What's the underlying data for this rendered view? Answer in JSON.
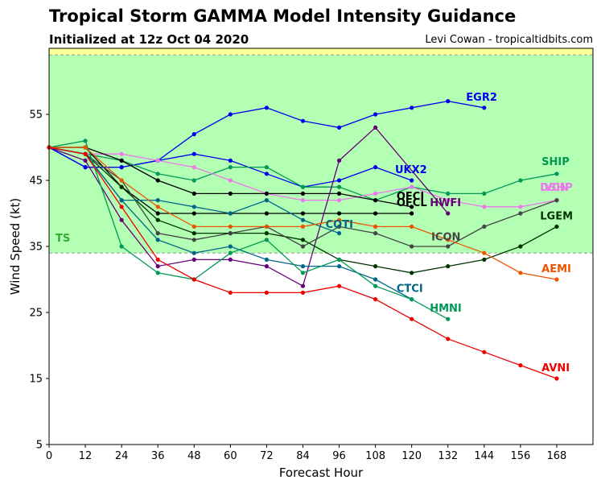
{
  "header": {
    "title": "Tropical Storm GAMMA Model Intensity Guidance",
    "subtitle": "Initialized at 12z Oct 04 2020",
    "credit": "Levi Cowan - tropicaltidbits.com"
  },
  "chart_data": {
    "type": "line",
    "title": "Tropical Storm GAMMA Model Intensity Guidance",
    "subtitle": "Initialized at 12z Oct 04 2020",
    "xlabel": "Forecast Hour",
    "ylabel": "Wind Speed (kt)",
    "xlim": [
      0,
      180
    ],
    "ylim": [
      5,
      65
    ],
    "xticks": [
      0,
      12,
      24,
      36,
      48,
      60,
      72,
      84,
      96,
      108,
      120,
      132,
      144,
      156,
      168
    ],
    "yticks": [
      5,
      15,
      25,
      35,
      45,
      55
    ],
    "bands": [
      {
        "label": "TS",
        "from": 34,
        "to": 64,
        "color": "#b3ffb3",
        "label_color": "#33aa33"
      },
      {
        "label": "",
        "from": 64,
        "to": 65,
        "color": "#ffff99",
        "label_color": ""
      }
    ],
    "threshold_lines": [
      34,
      64
    ],
    "series": [
      {
        "name": "EGR2",
        "color": "#0000ee",
        "x": [
          0,
          12,
          24,
          36,
          48,
          60,
          72,
          84,
          96,
          108,
          120,
          132,
          144
        ],
        "y": [
          50,
          47,
          47,
          48,
          52,
          55,
          56,
          54,
          53,
          55,
          56,
          57,
          56
        ]
      },
      {
        "name": "UKX2",
        "color": "#0000ee",
        "x": [
          0,
          12,
          24,
          36,
          48,
          60,
          72,
          84,
          96,
          108,
          120
        ],
        "y": [
          50,
          47,
          47,
          48,
          49,
          48,
          46,
          44,
          45,
          47,
          45
        ]
      },
      {
        "name": "SHIP",
        "color": "#009955",
        "x": [
          0,
          12,
          24,
          36,
          48,
          60,
          72,
          84,
          96,
          108,
          120,
          132,
          144,
          156,
          168
        ],
        "y": [
          50,
          49,
          48,
          46,
          45,
          47,
          47,
          44,
          44,
          42,
          44,
          43,
          43,
          45,
          46
        ]
      },
      {
        "name": "DSHP",
        "color": "#ee77ee",
        "x": [
          0,
          12,
          24,
          36,
          48,
          60,
          72,
          84,
          96,
          108,
          120,
          132,
          144,
          156,
          168
        ],
        "y": [
          50,
          49,
          49,
          48,
          47,
          45,
          43,
          42,
          42,
          43,
          44,
          42,
          41,
          41,
          42
        ]
      },
      {
        "name": "IVCN",
        "color": "#ee77ee",
        "x": [
          168
        ],
        "y": [
          42
        ]
      },
      {
        "name": "OFCI",
        "color": "#000000",
        "x": [
          0,
          12,
          24,
          36,
          48,
          60,
          72,
          84,
          96,
          108,
          120
        ],
        "y": [
          50,
          50,
          48,
          45,
          43,
          43,
          43,
          43,
          43,
          42,
          41
        ]
      },
      {
        "name": "OFCL",
        "color": "#000000",
        "x": [
          0,
          12,
          24,
          36,
          48,
          60,
          72,
          84,
          96,
          108,
          120
        ],
        "y": [
          50,
          50,
          44,
          40,
          40,
          40,
          40,
          40,
          40,
          40,
          40
        ]
      },
      {
        "name": "HWFI",
        "color": "#660077",
        "x": [
          0,
          12,
          24,
          36,
          48,
          60,
          72,
          84,
          96,
          108,
          132
        ],
        "y": [
          50,
          48,
          39,
          32,
          33,
          33,
          32,
          29,
          48,
          53,
          40
        ]
      },
      {
        "name": "LGEM",
        "color": "#003300",
        "x": [
          0,
          12,
          24,
          36,
          48,
          60,
          72,
          84,
          96,
          108,
          120,
          132,
          144,
          156,
          168
        ],
        "y": [
          50,
          49,
          44,
          39,
          37,
          37,
          37,
          36,
          33,
          32,
          31,
          32,
          33,
          35,
          38
        ]
      },
      {
        "name": "ICON",
        "color": "#444444",
        "x": [
          0,
          12,
          24,
          36,
          48,
          60,
          72,
          84,
          96,
          108,
          120,
          132,
          144,
          156,
          168
        ],
        "y": [
          50,
          49,
          45,
          37,
          36,
          37,
          38,
          35,
          38,
          37,
          35,
          35,
          38,
          40,
          42
        ]
      },
      {
        "name": "COTI",
        "color": "#006688",
        "x": [
          0,
          12,
          24,
          36,
          48,
          60,
          72,
          84,
          96
        ],
        "y": [
          50,
          49,
          42,
          42,
          41,
          40,
          42,
          39,
          37
        ]
      },
      {
        "name": "CTCI",
        "color": "#006688",
        "x": [
          0,
          12,
          24,
          36,
          48,
          60,
          72,
          84,
          96,
          108,
          120
        ],
        "y": [
          50,
          49,
          42,
          36,
          34,
          35,
          33,
          32,
          32,
          30,
          27
        ]
      },
      {
        "name": "HMNI",
        "color": "#009955",
        "x": [
          0,
          12,
          24,
          36,
          48,
          60,
          72,
          84,
          96,
          108,
          120,
          132
        ],
        "y": [
          50,
          51,
          35,
          31,
          30,
          34,
          36,
          31,
          33,
          29,
          27,
          24
        ]
      },
      {
        "name": "AEMI",
        "color": "#ee5500",
        "x": [
          0,
          12,
          24,
          36,
          48,
          60,
          72,
          84,
          96,
          108,
          120,
          132,
          144,
          156,
          168
        ],
        "y": [
          50,
          50,
          45,
          41,
          38,
          38,
          38,
          38,
          39,
          38,
          38,
          36,
          34,
          31,
          30
        ]
      },
      {
        "name": "AVNI",
        "color": "#ee0000",
        "x": [
          0,
          12,
          24,
          36,
          48,
          60,
          72,
          84,
          96,
          108,
          120,
          132,
          144,
          156,
          168
        ],
        "y": [
          50,
          49,
          41,
          33,
          30,
          28,
          28,
          28,
          29,
          27,
          24,
          21,
          19,
          17,
          15
        ]
      }
    ],
    "labels": [
      {
        "text": "EGR2",
        "color": "#0000ee",
        "x": 138,
        "y": 57.1
      },
      {
        "text": "UKX2",
        "color": "#0000ee",
        "x": 114.5,
        "y": 46.1
      },
      {
        "text": "SHIP",
        "color": "#009955",
        "x": 163,
        "y": 47.3
      },
      {
        "text": "DSHP",
        "color": "#ee77ee",
        "x": 162.5,
        "y": 43.4
      },
      {
        "text": "IVCN",
        "color": "#ee77ee",
        "x": 162.5,
        "y": 43.4
      },
      {
        "text": "OFCI",
        "color": "#000000",
        "x": 115,
        "y": 42.1
      },
      {
        "text": "OFCL",
        "color": "#000000",
        "x": 115,
        "y": 41.1
      },
      {
        "text": "HWFI",
        "color": "#660077",
        "x": 126,
        "y": 41.1
      },
      {
        "text": "LGEM",
        "color": "#003300",
        "x": 162.5,
        "y": 39.1
      },
      {
        "text": "ICON",
        "color": "#444444",
        "x": 126.5,
        "y": 35.9
      },
      {
        "text": "COTI",
        "color": "#006688",
        "x": 91.5,
        "y": 37.8
      },
      {
        "text": "CTCI",
        "color": "#006688",
        "x": 115,
        "y": 28.1
      },
      {
        "text": "HMNI",
        "color": "#009955",
        "x": 126,
        "y": 25.1
      },
      {
        "text": "AEMI",
        "color": "#ee5500",
        "x": 163,
        "y": 31.1
      },
      {
        "text": "AVNI",
        "color": "#ee0000",
        "x": 163,
        "y": 16.1
      }
    ]
  }
}
